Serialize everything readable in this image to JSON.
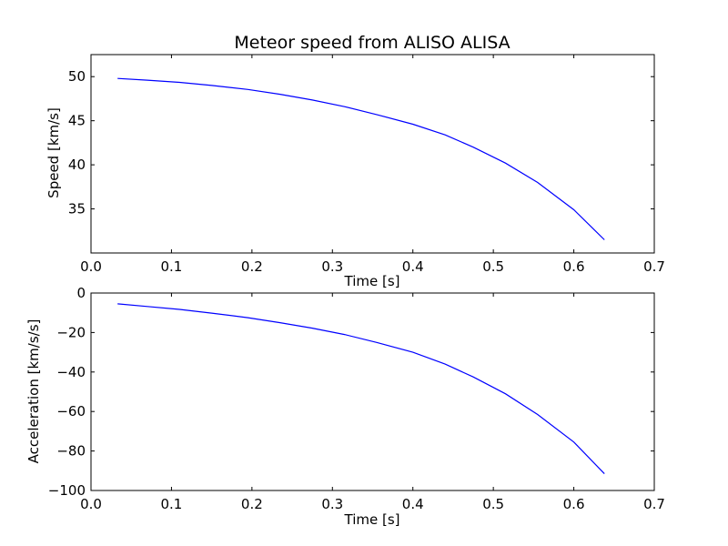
{
  "chart_data": [
    {
      "type": "line",
      "title": "Meteor speed from  ALISO ALISA",
      "xlabel": "Time [s]",
      "ylabel": "Speed [km/s]",
      "xlim": [
        0.0,
        0.7
      ],
      "ylim": [
        30.0,
        52.5
      ],
      "xticks": [
        "0.0",
        "0.1",
        "0.2",
        "0.3",
        "0.4",
        "0.5",
        "0.6",
        "0.7"
      ],
      "yticks": [
        "35",
        "40",
        "45",
        "50"
      ],
      "grid": false,
      "line_color": "#0000ff",
      "series": [
        {
          "x": [
            0.033,
            0.07,
            0.11,
            0.15,
            0.195,
            0.235,
            0.275,
            0.315,
            0.355,
            0.4,
            0.44,
            0.475,
            0.515,
            0.555,
            0.6,
            0.638
          ],
          "y": [
            49.8,
            49.6,
            49.35,
            49.0,
            48.55,
            48.0,
            47.35,
            46.6,
            45.7,
            44.6,
            43.4,
            42.0,
            40.2,
            38.0,
            34.9,
            31.5
          ]
        }
      ]
    },
    {
      "type": "line",
      "title": "",
      "xlabel": "Time [s]",
      "ylabel": "Acceleration [km/s/s]",
      "xlim": [
        0.0,
        0.7
      ],
      "ylim": [
        -100,
        0
      ],
      "xticks": [
        "0.0",
        "0.1",
        "0.2",
        "0.3",
        "0.4",
        "0.5",
        "0.6",
        "0.7"
      ],
      "yticks": [
        "0",
        "−20",
        "−40",
        "−60",
        "−80",
        "−100"
      ],
      "grid": false,
      "line_color": "#0000ff",
      "series": [
        {
          "x": [
            0.033,
            0.07,
            0.11,
            0.15,
            0.195,
            0.235,
            0.275,
            0.315,
            0.355,
            0.4,
            0.44,
            0.475,
            0.515,
            0.555,
            0.6,
            0.638
          ],
          "y": [
            -5.5,
            -6.8,
            -8.3,
            -10.2,
            -12.5,
            -15.0,
            -17.8,
            -21.0,
            -25.0,
            -30.0,
            -36.0,
            -42.5,
            -51.0,
            -61.5,
            -75.5,
            -91.5
          ]
        }
      ]
    }
  ]
}
